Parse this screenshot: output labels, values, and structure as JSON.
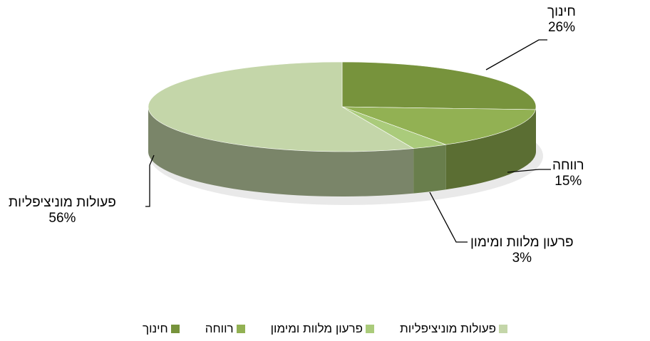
{
  "chart_data": {
    "type": "pie",
    "title": "",
    "categories": [
      "חינוך",
      "רווחה",
      "פרעון מלוות ומימון",
      "פעולות מוניציפליות"
    ],
    "values": [
      26,
      15,
      3,
      56
    ],
    "value_labels": [
      "26%",
      "15%",
      "3%",
      "56%"
    ],
    "colors": [
      "#77933c",
      "#92b153",
      "#aacb7b",
      "#c4d6a9"
    ],
    "legend_position": "bottom"
  }
}
